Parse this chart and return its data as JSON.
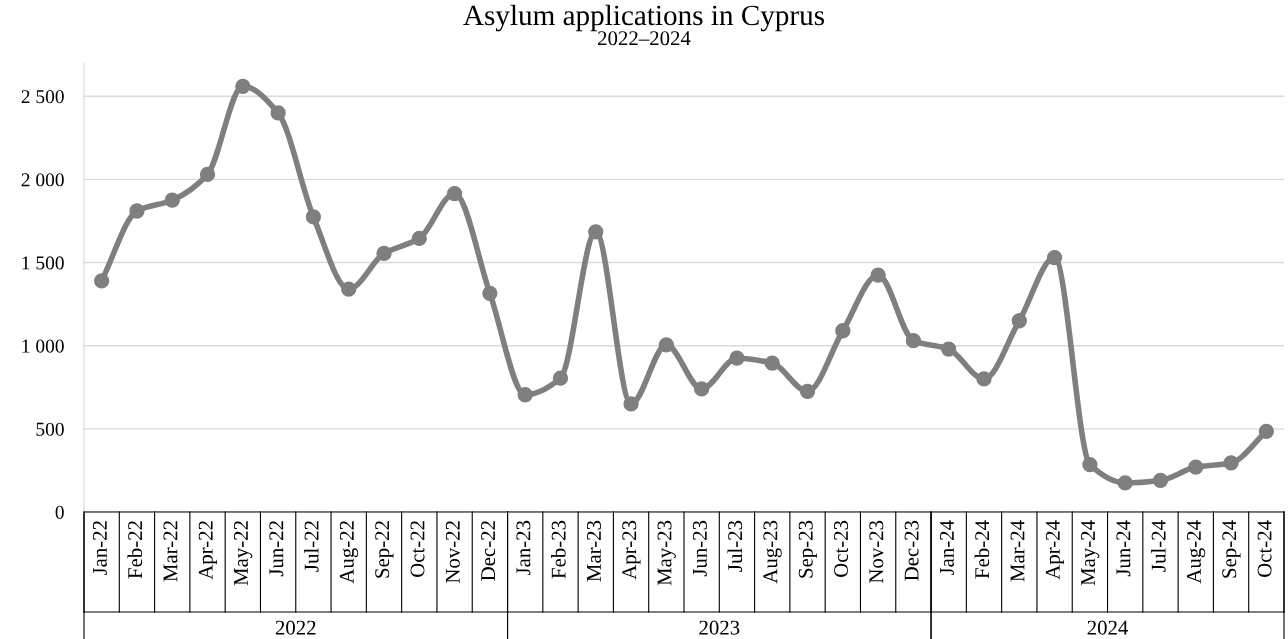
{
  "chart_data": {
    "type": "line",
    "title": "Asylum applications in Cyprus",
    "subtitle": "2022–2024",
    "categories": [
      "Jan-22",
      "Feb-22",
      "Mar-22",
      "Apr-22",
      "May-22",
      "Jun-22",
      "Jul-22",
      "Aug-22",
      "Sep-22",
      "Oct-22",
      "Nov-22",
      "Dec-22",
      "Jan-23",
      "Feb-23",
      "Mar-23",
      "Apr-23",
      "May-23",
      "Jun-23",
      "Jul-23",
      "Aug-23",
      "Sep-23",
      "Oct-23",
      "Nov-23",
      "Dec-23",
      "Jan-24",
      "Feb-24",
      "Mar-24",
      "Apr-24",
      "May-24",
      "Jun-24",
      "Jul-24",
      "Aug-24",
      "Sep-24",
      "Oct-24"
    ],
    "series": [
      {
        "color": "#7f7f7f",
        "values": [
          1390,
          1810,
          1875,
          2030,
          2560,
          2400,
          1775,
          1340,
          1555,
          1645,
          1915,
          1315,
          705,
          805,
          1685,
          650,
          1005,
          740,
          925,
          895,
          725,
          1090,
          1425,
          1030,
          980,
          800,
          1150,
          1530,
          285,
          175,
          190,
          270,
          295,
          485
        ]
      }
    ],
    "annotations": [
      "2022",
      "2023",
      "2024"
    ],
    "ylim": [
      0,
      2700
    ],
    "yticks": [
      0,
      {
        "value": 500,
        "label": "500"
      },
      {
        "value": 1000,
        "label": "1 000"
      },
      {
        "value": 1500,
        "label": "1 500"
      },
      {
        "value": 2000,
        "label": "2 000"
      },
      {
        "value": 2500,
        "label": "2 500"
      }
    ],
    "grid": "y",
    "marker": "circle",
    "line_style": "solid",
    "legend": false
  }
}
